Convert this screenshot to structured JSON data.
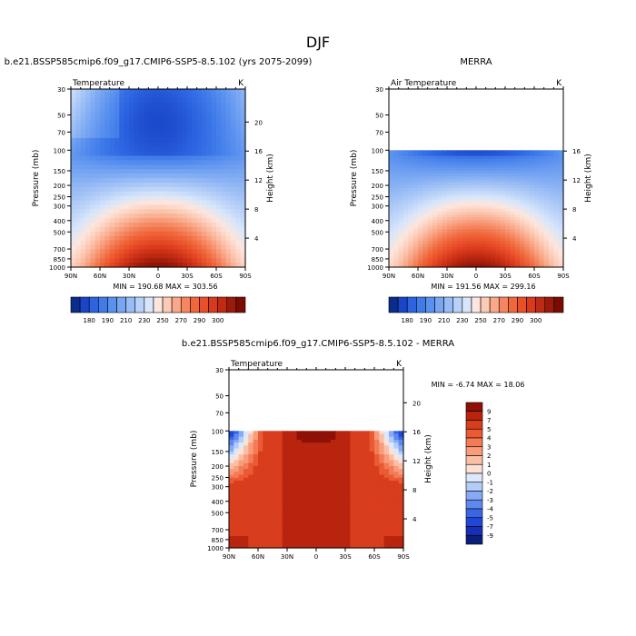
{
  "figure_title": "DJF",
  "colors": {
    "blue_ramp": [
      "#0a2c8c",
      "#1a45c8",
      "#2b63e0",
      "#3f7be9",
      "#5a91ef",
      "#78a6f2",
      "#98bcf5",
      "#b8d1f8",
      "#d7e6fb"
    ],
    "red_ramp": [
      "#fde6dd",
      "#fccab5",
      "#f9a98a",
      "#f5865f",
      "#f0673c",
      "#e9502a",
      "#d93a1c",
      "#bf2a12",
      "#9c1a0a",
      "#7a0c04"
    ],
    "mask": "#ffffff"
  },
  "chart_data": [
    {
      "type": "heatmap",
      "panel_title": "b.e21.BSSP585cmip6.f09_g17.CMIP6-SSP5-8.5.102 (yrs 2075-2099)",
      "left_label": "Temperature",
      "units": "K",
      "ylabel": "Pressure (mb)",
      "ylabel_right": "Height (km)",
      "x_ticks": [
        "90N",
        "60N",
        "30N",
        "0",
        "30S",
        "60S",
        "90S"
      ],
      "y_ticks": [
        "30",
        "50",
        "70",
        "100",
        "150",
        "200",
        "250",
        "300",
        "400",
        "500",
        "700",
        "850",
        "1000"
      ],
      "height_ticks": [
        "20",
        "16",
        "12",
        "8",
        "4"
      ],
      "min_max_text": "MIN = 190.68   MAX = 303.56",
      "min": 190.68,
      "max": 303.56,
      "top_pressure": 30,
      "contour_levels": [
        180,
        185,
        190,
        195,
        200,
        205,
        210,
        220,
        230,
        240,
        250,
        260,
        270,
        280,
        290,
        295,
        300,
        305
      ],
      "colorbar_labels": [
        "180",
        "190",
        "210",
        "230",
        "250",
        "270",
        "290",
        "300"
      ]
    },
    {
      "type": "heatmap",
      "panel_title": "MERRA",
      "left_label": "Air Temperature",
      "units": "K",
      "ylabel": "Pressure (mb)",
      "ylabel_right": "Height (km)",
      "x_ticks": [
        "90N",
        "60N",
        "30N",
        "0",
        "30S",
        "60S",
        "90S"
      ],
      "y_ticks": [
        "30",
        "50",
        "70",
        "100",
        "150",
        "200",
        "250",
        "300",
        "400",
        "500",
        "700",
        "850",
        "1000"
      ],
      "height_ticks": [
        "16",
        "12",
        "8",
        "4"
      ],
      "min_max_text": "MIN = 191.56   MAX = 299.16",
      "min": 191.56,
      "max": 299.16,
      "top_pressure": 100,
      "contour_levels": [
        180,
        185,
        190,
        195,
        200,
        205,
        210,
        220,
        230,
        240,
        250,
        260,
        270,
        280,
        290,
        295,
        300,
        305
      ],
      "colorbar_labels": [
        "180",
        "190",
        "210",
        "230",
        "250",
        "270",
        "290",
        "300"
      ]
    },
    {
      "type": "heatmap",
      "panel_title": "b.e21.BSSP585cmip6.f09_g17.CMIP6-SSP5-8.5.102 - MERRA",
      "left_label": "Temperature",
      "units": "K",
      "ylabel": "Pressure (mb)",
      "ylabel_right": "Height (km)",
      "x_ticks": [
        "90N",
        "60N",
        "30N",
        "0",
        "30S",
        "60S",
        "90S"
      ],
      "y_ticks": [
        "30",
        "50",
        "70",
        "100",
        "150",
        "200",
        "250",
        "300",
        "400",
        "500",
        "700",
        "850",
        "1000"
      ],
      "height_ticks": [
        "20",
        "16",
        "12",
        "8",
        "4"
      ],
      "min_max_text": "MIN =  -6.74   MAX =  18.06",
      "min": -6.74,
      "max": 18.06,
      "top_pressure": 100,
      "contour_levels": [
        -9,
        -7,
        -5,
        -4,
        -3,
        -2,
        -1,
        0,
        1,
        2,
        3,
        4,
        5,
        7,
        9
      ],
      "colorbar_labels": [
        "9",
        "7",
        "5",
        "4",
        "3",
        "2",
        "1",
        "0",
        "-1",
        "-2",
        "-3",
        "-4",
        "-5",
        "-7",
        "-9"
      ]
    }
  ]
}
